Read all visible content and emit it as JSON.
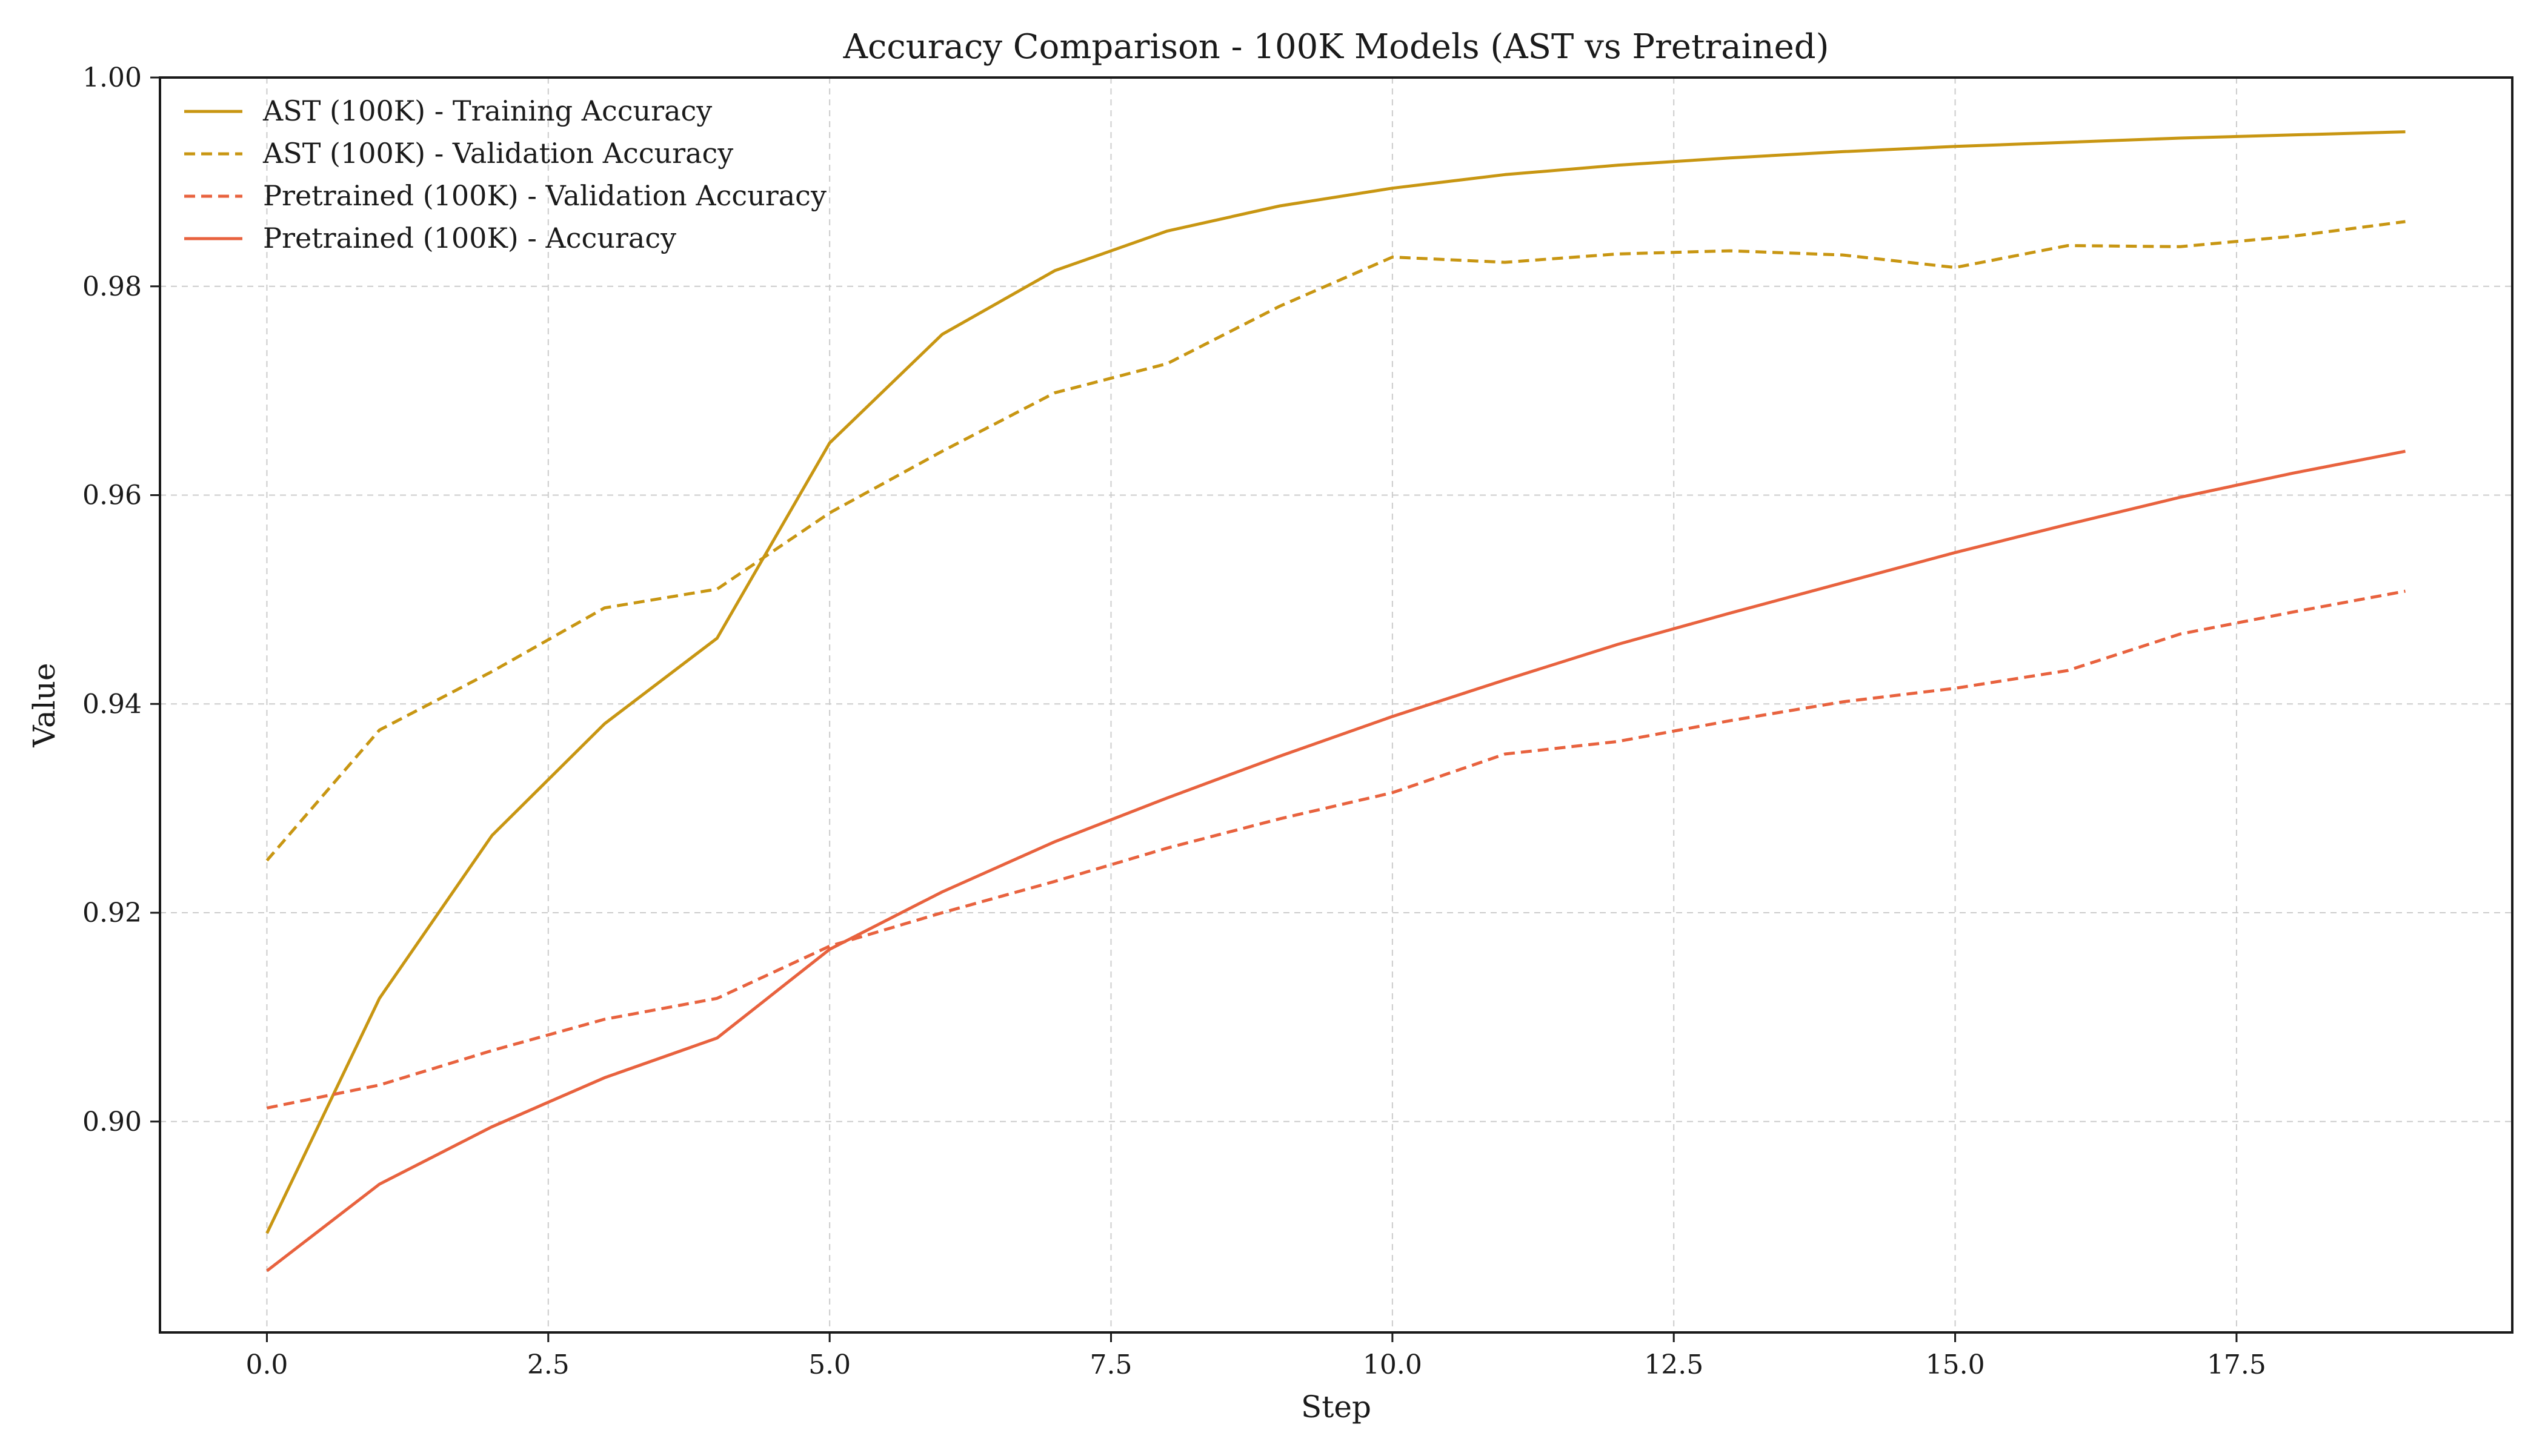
{
  "chart_data": {
    "type": "line",
    "title": "Accuracy Comparison - 100K Models (AST vs Pretrained)",
    "xlabel": "Step",
    "ylabel": "Value",
    "xlim": [
      -0.95,
      19.95
    ],
    "ylim": [
      0.8798,
      1.0
    ],
    "x_ticks": [
      "0.0",
      "2.5",
      "5.0",
      "7.5",
      "10.0",
      "12.5",
      "15.0",
      "17.5"
    ],
    "y_ticks": [
      "0.90",
      "0.92",
      "0.94",
      "0.96",
      "0.98",
      "1.00"
    ],
    "grid": true,
    "legend_position": "top-left",
    "x": [
      0,
      1,
      2,
      3,
      4,
      5,
      6,
      7,
      8,
      9,
      10,
      11,
      12,
      13,
      14,
      15,
      16,
      17,
      18,
      19
    ],
    "series": [
      {
        "name": "AST (100K) - Training Accuracy",
        "color": "#c89612",
        "style": "solid",
        "values": [
          0.8893,
          0.9118,
          0.9274,
          0.9381,
          0.9463,
          0.965,
          0.9754,
          0.9815,
          0.9853,
          0.9877,
          0.9894,
          0.9907,
          0.9916,
          0.9923,
          0.9929,
          0.9934,
          0.9938,
          0.9942,
          0.9945,
          0.9948
        ]
      },
      {
        "name": "AST (100K) - Validation Accuracy",
        "color": "#c89612",
        "style": "dashed",
        "values": [
          0.925,
          0.9375,
          0.9431,
          0.9492,
          0.951,
          0.9583,
          0.9642,
          0.9698,
          0.9726,
          0.9781,
          0.9828,
          0.9823,
          0.9831,
          0.9834,
          0.983,
          0.9818,
          0.9839,
          0.9838,
          0.9848,
          0.9862
        ]
      },
      {
        "name": "Pretrained (100K) - Validation Accuracy",
        "color": "#e8623e",
        "style": "dashed",
        "values": [
          0.9013,
          0.9035,
          0.9068,
          0.9098,
          0.9118,
          0.9168,
          0.92,
          0.923,
          0.9262,
          0.929,
          0.9315,
          0.9352,
          0.9364,
          0.9384,
          0.9402,
          0.9415,
          0.9432,
          0.9467,
          0.9488,
          0.9508
        ]
      },
      {
        "name": "Pretrained (100K) - Accuracy",
        "color": "#e8623e",
        "style": "solid",
        "values": [
          0.8857,
          0.894,
          0.8995,
          0.9042,
          0.908,
          0.9165,
          0.922,
          0.9268,
          0.931,
          0.935,
          0.9388,
          0.9423,
          0.9457,
          0.9487,
          0.9516,
          0.9545,
          0.9572,
          0.9598,
          0.9621,
          0.9642
        ]
      }
    ]
  }
}
